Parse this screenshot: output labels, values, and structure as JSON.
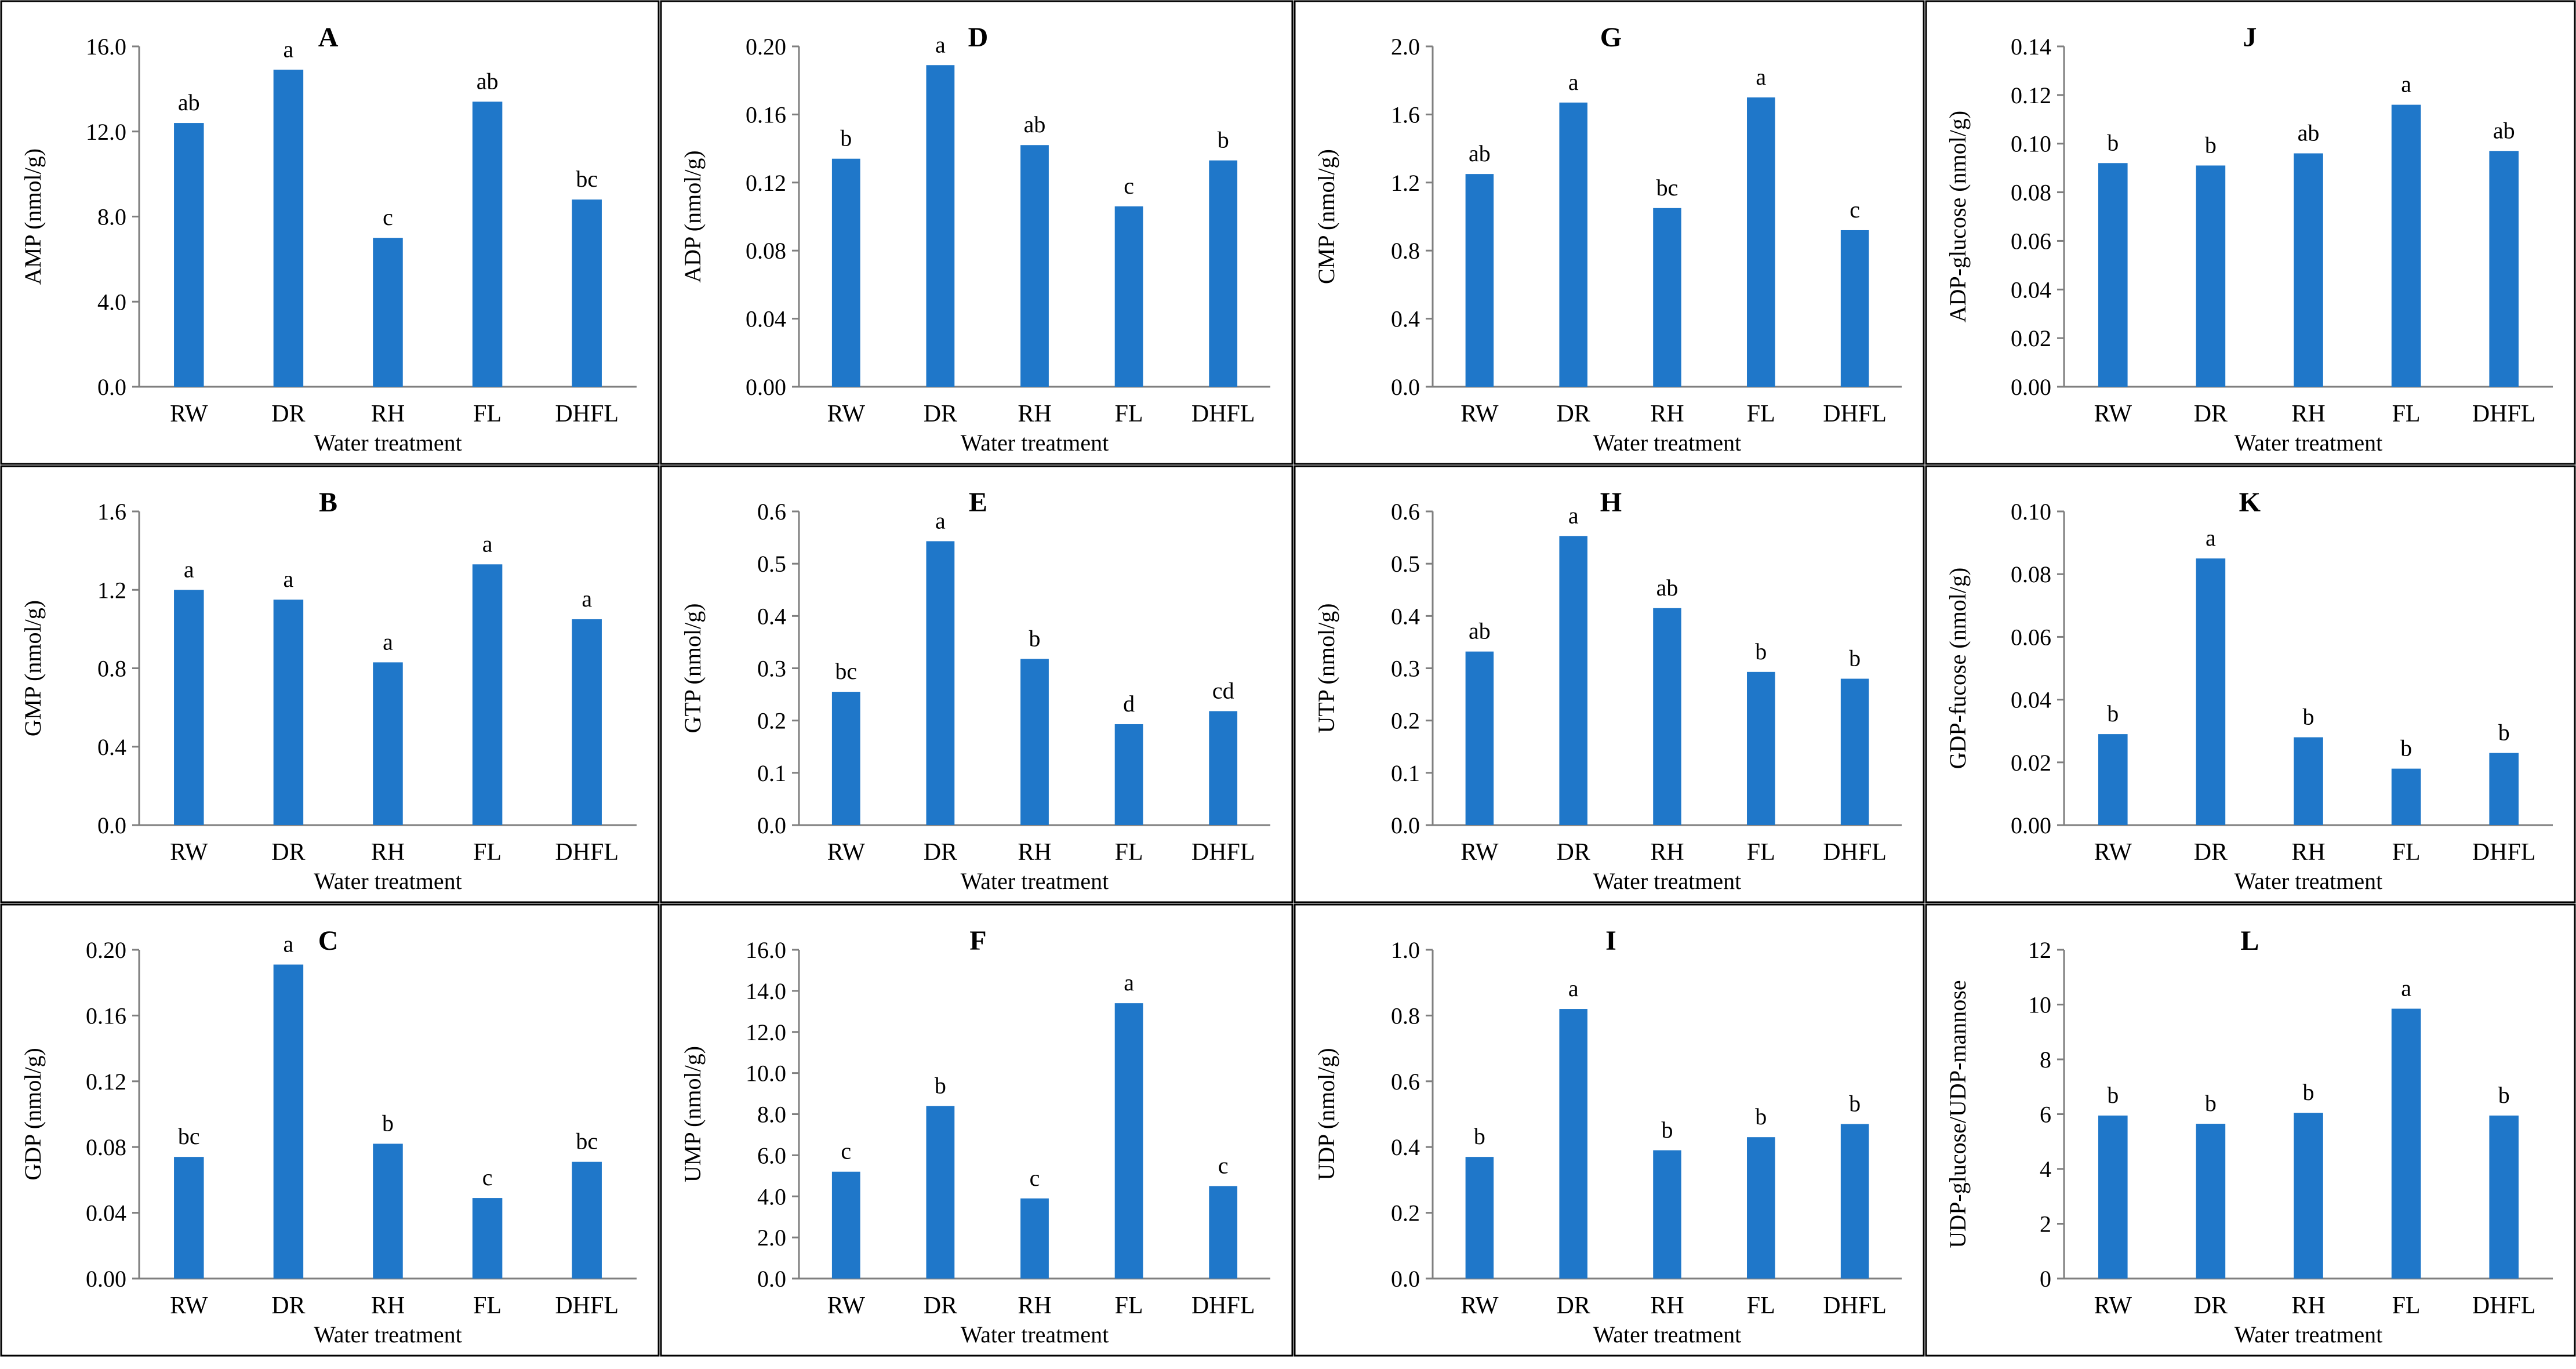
{
  "figure": {
    "bar_color": "#1f77c9",
    "axis_color": "#7f7f7f",
    "border_color": "#000000"
  },
  "chart_data": [
    {
      "panel": "A",
      "type": "bar",
      "ylabel": "AMP (nmol/g)",
      "xlabel": "Water treatment",
      "categories": [
        "RW",
        "DR",
        "RH",
        "FL",
        "DHFL"
      ],
      "values": [
        12.4,
        14.9,
        7.0,
        13.4,
        8.8
      ],
      "significance": [
        "ab",
        "a",
        "c",
        "ab",
        "bc"
      ],
      "ylim": [
        0,
        16
      ],
      "yticks": [
        "0.0",
        "4.0",
        "8.0",
        "12.0",
        "16.0"
      ]
    },
    {
      "panel": "B",
      "type": "bar",
      "ylabel": "GMP (nmol/g)",
      "xlabel": "Water treatment",
      "categories": [
        "RW",
        "DR",
        "RH",
        "FL",
        "DHFL"
      ],
      "values": [
        1.2,
        1.15,
        0.83,
        1.33,
        1.05
      ],
      "significance": [
        "a",
        "a",
        "a",
        "a",
        "a"
      ],
      "ylim": [
        0,
        1.6
      ],
      "yticks": [
        "0.0",
        "0.4",
        "0.8",
        "1.2",
        "1.6"
      ]
    },
    {
      "panel": "C",
      "type": "bar",
      "ylabel": "GDP (nmol/g)",
      "xlabel": "Water treatment",
      "categories": [
        "RW",
        "DR",
        "RH",
        "FL",
        "DHFL"
      ],
      "values": [
        0.074,
        0.191,
        0.082,
        0.049,
        0.071
      ],
      "significance": [
        "bc",
        "a",
        "b",
        "c",
        "bc"
      ],
      "ylim": [
        0,
        0.2
      ],
      "yticks": [
        "0.00",
        "0.04",
        "0.08",
        "0.12",
        "0.16",
        "0.20"
      ]
    },
    {
      "panel": "D",
      "type": "bar",
      "ylabel": "ADP (nmol/g)",
      "xlabel": "Water treatment",
      "categories": [
        "RW",
        "DR",
        "RH",
        "FL",
        "DHFL"
      ],
      "values": [
        0.134,
        0.189,
        0.142,
        0.106,
        0.133
      ],
      "significance": [
        "b",
        "a",
        "ab",
        "c",
        "b"
      ],
      "ylim": [
        0,
        0.2
      ],
      "yticks": [
        "0.00",
        "0.04",
        "0.08",
        "0.12",
        "0.16",
        "0.20"
      ]
    },
    {
      "panel": "E",
      "type": "bar",
      "ylabel": "GTP (nmol/g)",
      "xlabel": "Water treatment",
      "categories": [
        "RW",
        "DR",
        "RH",
        "FL",
        "DHFL"
      ],
      "values": [
        0.255,
        0.543,
        0.318,
        0.193,
        0.218
      ],
      "significance": [
        "bc",
        "a",
        "b",
        "d",
        "cd"
      ],
      "ylim": [
        0,
        0.6
      ],
      "yticks": [
        "0.0",
        "0.1",
        "0.2",
        "0.3",
        "0.4",
        "0.5",
        "0.6"
      ]
    },
    {
      "panel": "F",
      "type": "bar",
      "ylabel": "UMP (nmol/g)",
      "xlabel": "Water treatment",
      "categories": [
        "RW",
        "DR",
        "RH",
        "FL",
        "DHFL"
      ],
      "values": [
        5.2,
        8.4,
        3.9,
        13.4,
        4.5
      ],
      "significance": [
        "c",
        "b",
        "c",
        "a",
        "c"
      ],
      "ylim": [
        0,
        16
      ],
      "yticks": [
        "0.0",
        "2.0",
        "4.0",
        "6.0",
        "8.0",
        "10.0",
        "12.0",
        "14.0",
        "16.0"
      ]
    },
    {
      "panel": "G",
      "type": "bar",
      "ylabel": "CMP (nmol/g)",
      "xlabel": "Water treatment",
      "categories": [
        "RW",
        "DR",
        "RH",
        "FL",
        "DHFL"
      ],
      "values": [
        1.25,
        1.67,
        1.05,
        1.7,
        0.92
      ],
      "significance": [
        "ab",
        "a",
        "bc",
        "a",
        "c"
      ],
      "ylim": [
        0,
        2.0
      ],
      "yticks": [
        "0.0",
        "0.4",
        "0.8",
        "1.2",
        "1.6",
        "2.0"
      ]
    },
    {
      "panel": "H",
      "type": "bar",
      "ylabel": "UTP (nmol/g)",
      "xlabel": "Water treatment",
      "categories": [
        "RW",
        "DR",
        "RH",
        "FL",
        "DHFL"
      ],
      "values": [
        0.332,
        0.553,
        0.415,
        0.293,
        0.28
      ],
      "significance": [
        "ab",
        "a",
        "ab",
        "b",
        "b"
      ],
      "ylim": [
        0,
        0.6
      ],
      "yticks": [
        "0.0",
        "0.1",
        "0.2",
        "0.3",
        "0.4",
        "0.5",
        "0.6"
      ]
    },
    {
      "panel": "I",
      "type": "bar",
      "ylabel": "UDP (nmol/g)",
      "xlabel": "Water treatment",
      "categories": [
        "RW",
        "DR",
        "RH",
        "FL",
        "DHFL"
      ],
      "values": [
        0.37,
        0.82,
        0.39,
        0.43,
        0.47
      ],
      "significance": [
        "b",
        "a",
        "b",
        "b",
        "b"
      ],
      "ylim": [
        0,
        1.0
      ],
      "yticks": [
        "0.0",
        "0.2",
        "0.4",
        "0.6",
        "0.8",
        "1.0"
      ]
    },
    {
      "panel": "J",
      "type": "bar",
      "ylabel": "ADP-glucose (nmol/g)",
      "xlabel": "Water treatment",
      "categories": [
        "RW",
        "DR",
        "RH",
        "FL",
        "DHFL"
      ],
      "values": [
        0.092,
        0.091,
        0.096,
        0.116,
        0.097
      ],
      "significance": [
        "b",
        "b",
        "ab",
        "a",
        "ab"
      ],
      "ylim": [
        0,
        0.14
      ],
      "yticks": [
        "0.00",
        "0.02",
        "0.04",
        "0.06",
        "0.08",
        "0.10",
        "0.12",
        "0.14"
      ]
    },
    {
      "panel": "K",
      "type": "bar",
      "ylabel": "GDP-fucose (nmol/g)",
      "xlabel": "Water treatment",
      "categories": [
        "RW",
        "DR",
        "RH",
        "FL",
        "DHFL"
      ],
      "values": [
        0.029,
        0.085,
        0.028,
        0.018,
        0.023
      ],
      "significance": [
        "b",
        "a",
        "b",
        "b",
        "b"
      ],
      "ylim": [
        0,
        0.1
      ],
      "yticks": [
        "0.00",
        "0.02",
        "0.04",
        "0.06",
        "0.08",
        "0.10"
      ]
    },
    {
      "panel": "L",
      "type": "bar",
      "ylabel": "UDP-glucose/UDP-mannose",
      "xlabel": "Water treatment",
      "categories": [
        "RW",
        "DR",
        "RH",
        "FL",
        "DHFL"
      ],
      "values": [
        5.95,
        5.65,
        6.05,
        9.85,
        5.95
      ],
      "significance": [
        "b",
        "b",
        "b",
        "a",
        "b"
      ],
      "ylim": [
        0,
        12
      ],
      "yticks": [
        "0",
        "2",
        "4",
        "6",
        "8",
        "10",
        "12"
      ]
    }
  ]
}
